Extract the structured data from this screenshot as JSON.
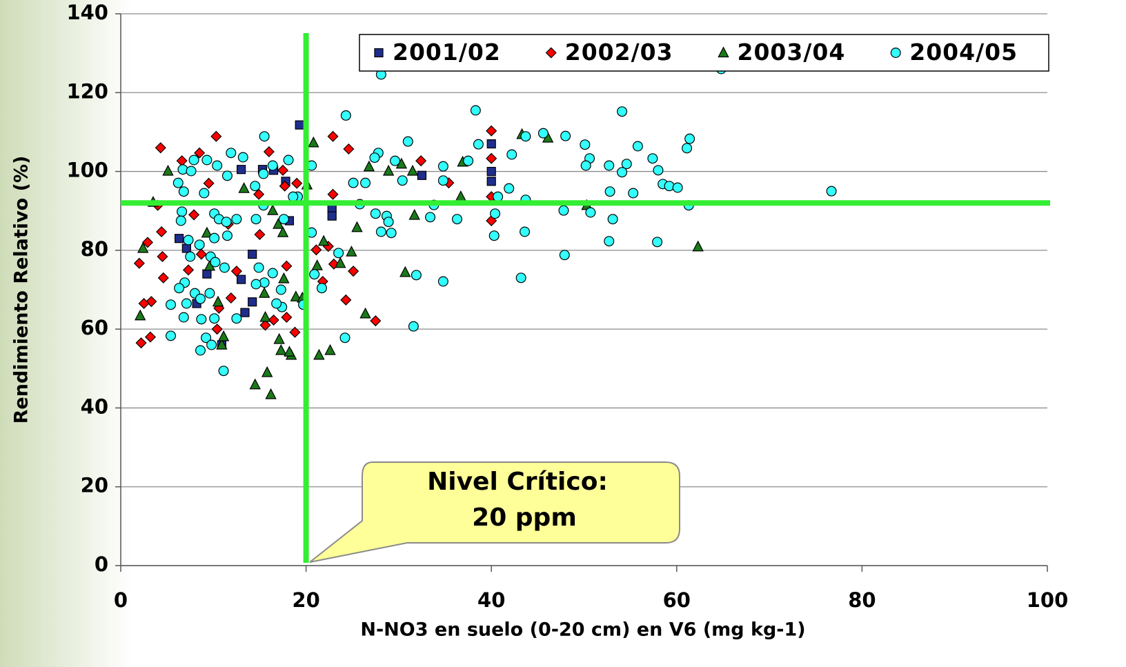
{
  "chart_data": {
    "type": "scatter",
    "x_label": "N-NO3 en suelo (0-20 cm) en V6 (mg kg-1)",
    "y_label": "Rendimiento Relativo (%)",
    "xlim": [
      0,
      100
    ],
    "xticks": [
      0,
      20,
      40,
      60,
      80,
      100
    ],
    "ylim": [
      0,
      140
    ],
    "yticks": [
      0,
      20,
      40,
      60,
      80,
      100,
      120,
      140
    ],
    "grid": true,
    "legend": "top-right",
    "reference_lines": {
      "x": 20,
      "y": 92,
      "color": "#33ee33"
    },
    "annotation": [
      "Nivel Crítico:",
      "20 ppm"
    ],
    "series": [
      {
        "name": "2001/02",
        "color": "#1f2d8c",
        "marker": "square",
        "x": [
          19.3,
          40,
          40,
          40,
          32.5,
          22.8,
          22.8,
          18.2,
          13,
          15.3,
          16.5,
          17.8,
          6.3,
          7.1,
          9.3,
          14.2,
          13,
          13.4,
          14.2,
          10.9,
          8.2
        ],
        "y": [
          111.8,
          107,
          100,
          97.5,
          99,
          90.7,
          88.7,
          87.5,
          100.5,
          100.5,
          100.3,
          97.5,
          83,
          80.5,
          74,
          79,
          72.6,
          64.2,
          66.9,
          56,
          66.5
        ]
      },
      {
        "name": "2002/03",
        "color": "#ff0000",
        "marker": "diamond",
        "x": [
          4.3,
          2,
          2.2,
          3.2,
          3.3,
          2.5,
          2.9,
          4.4,
          4.6,
          4.5,
          4,
          6.6,
          8.5,
          10.3,
          9.5,
          7.9,
          8.7,
          7.3,
          10.6,
          10.4,
          11.6,
          12.5,
          11.9,
          16,
          14.9,
          15,
          15.6,
          16.5,
          17.5,
          17.7,
          17.9,
          17.9,
          18.8,
          19,
          21.1,
          21.8,
          22.9,
          22.9,
          22.4,
          23,
          24.3,
          24.6,
          25.1,
          27.5,
          32.4,
          35.4,
          40,
          40,
          40,
          40
        ],
        "y": [
          106,
          76.7,
          56.5,
          58,
          67,
          66.5,
          82,
          84.7,
          73,
          78.4,
          91.4,
          102.7,
          104.7,
          108.9,
          97,
          89,
          79,
          75,
          65.3,
          60,
          86.6,
          74.7,
          67.9,
          105,
          94.2,
          84,
          61,
          62.3,
          100.3,
          96.3,
          76,
          63,
          59.2,
          97,
          80.1,
          72.1,
          108.9,
          94.2,
          81,
          76.5,
          67.4,
          105.7,
          74.7,
          62.1,
          102.7,
          97.1,
          110.3,
          103.3,
          93.6,
          87.5
        ]
      },
      {
        "name": "2003/04",
        "color": "#1a7a1a",
        "marker": "triangle",
        "x": [
          5.1,
          2.1,
          2.4,
          3.5,
          9.3,
          9.6,
          10.5,
          10.9,
          11.1,
          13.3,
          14.5,
          15.8,
          16.2,
          15.5,
          15.6,
          16.4,
          17,
          17.5,
          17.6,
          17.1,
          17.3,
          18.4,
          18.2,
          18.9,
          19.6,
          20.1,
          20.8,
          21.2,
          21.9,
          21.4,
          22.6,
          23.7,
          24.9,
          25.5,
          26.4,
          26.8,
          28.9,
          30.3,
          30.7,
          31.7,
          31.5,
          36.9,
          36.7,
          43.3,
          46.1,
          50.3,
          62.3
        ],
        "y": [
          100.1,
          63.4,
          80.5,
          92.2,
          84.4,
          76,
          66.9,
          56,
          58.1,
          95.7,
          45.9,
          49,
          43.4,
          69.1,
          63,
          90.1,
          86.6,
          84.5,
          72.8,
          57.4,
          54.6,
          53.4,
          54.2,
          68.2,
          67.9,
          96.6,
          107.3,
          76.1,
          82.3,
          53.4,
          54.6,
          76.7,
          79.6,
          85.8,
          63.9,
          101.2,
          100.1,
          101.9,
          74.4,
          88.9,
          100.1,
          102.4,
          93.6,
          109.4,
          108.5,
          91.4,
          80.9
        ]
      },
      {
        "name": "2004/05",
        "color": "#33ffff",
        "marker": "circle",
        "x": [
          28.1,
          64.8,
          38.3,
          54.1,
          24.3,
          15.5,
          31,
          38.6,
          48,
          50.1,
          61.4,
          61.1,
          55.8,
          45.6,
          43.7,
          42.2,
          50.6,
          52.7,
          54.6,
          57.4,
          50.2,
          58,
          58.5,
          59.2,
          60.1,
          52.8,
          54.1,
          55.3,
          76.7,
          61.3,
          41.9,
          43.7,
          40.7,
          40.4,
          40.3,
          43.6,
          47.8,
          50.7,
          53.1,
          52.7,
          57.9,
          47.9,
          43.2,
          34.8,
          31.9,
          31.6,
          34.8,
          34.8,
          37.5,
          36.3,
          33.4,
          33.8,
          29.6,
          30.4,
          27.8,
          27.4,
          26.4,
          25.1,
          25.8,
          28.7,
          28.9,
          29.2,
          28.1,
          27.5,
          23.5,
          24.2,
          21.7,
          20.6,
          20.6,
          19.7,
          20.9,
          17.6,
          18.1,
          16.4,
          15.4,
          14.5,
          13.2,
          11.9,
          11.5,
          10.4,
          9.3,
          7.9,
          6.7,
          7.6,
          6.2,
          6.8,
          9,
          6.6,
          6.5,
          10.1,
          10.6,
          11.4,
          12.5,
          14.6,
          11.5,
          10.1,
          8.5,
          7.3,
          7.5,
          9.7,
          10.2,
          11.2,
          6.9,
          6.3,
          8,
          9.6,
          8.6,
          7.1,
          5.4,
          6.8,
          8.7,
          10.1,
          12.5,
          5.4,
          9.2,
          9.8,
          8.6,
          11.1,
          15.5,
          16.4,
          17.3,
          17.4,
          16.8,
          14.9,
          14.6,
          15.4,
          19.1,
          18.6
        ],
        "y": [
          124.6,
          126,
          115.5,
          115.2,
          114.2,
          108.9,
          107.6,
          106.9,
          109,
          106.8,
          108.3,
          105.9,
          106.4,
          109.7,
          108.9,
          104.3,
          103.3,
          101.5,
          101.9,
          103.3,
          101.5,
          100.3,
          96.8,
          96.3,
          95.9,
          94.9,
          99.8,
          94.5,
          95,
          91.4,
          95.7,
          92.8,
          93.6,
          89.3,
          83.7,
          84.7,
          90.1,
          89.6,
          87.9,
          82.3,
          82.1,
          78.8,
          73,
          72.1,
          73.7,
          60.7,
          101.3,
          97.7,
          102.7,
          87.9,
          88.4,
          91.5,
          102.7,
          97.7,
          104.7,
          103.5,
          97.1,
          97.1,
          91.7,
          88.7,
          87.2,
          84.4,
          84.7,
          89.3,
          79.3,
          57.8,
          70.4,
          101.5,
          84.5,
          66.2,
          73.9,
          87.9,
          102.9,
          101.5,
          99.4,
          96.3,
          103.6,
          104.7,
          98.9,
          101.5,
          102.9,
          102.9,
          100.5,
          100.1,
          97.1,
          94.9,
          94.5,
          89.8,
          87.5,
          89.3,
          87.9,
          87.2,
          87.9,
          87.9,
          83.7,
          83.1,
          81.4,
          82.6,
          78.4,
          78.4,
          77,
          75.6,
          71.8,
          70.4,
          69.1,
          69.1,
          67.7,
          66.5,
          66.2,
          63,
          62.5,
          62.7,
          62.7,
          58.3,
          57.8,
          56,
          54.6,
          49.4,
          71.8,
          74.2,
          70,
          65.6,
          66.5,
          75.6,
          71.4,
          91.4,
          93.6,
          93.6
        ]
      }
    ]
  }
}
